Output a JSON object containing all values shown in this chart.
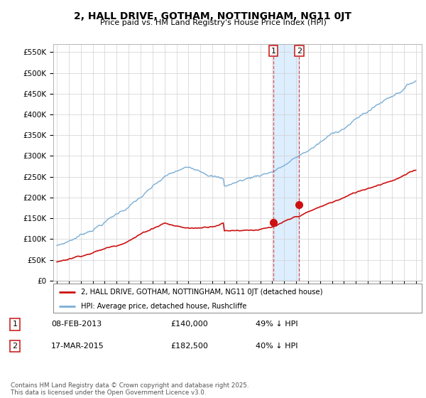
{
  "title": "2, HALL DRIVE, GOTHAM, NOTTINGHAM, NG11 0JT",
  "subtitle": "Price paid vs. HM Land Registry's House Price Index (HPI)",
  "ylabel_ticks": [
    "£0",
    "£50K",
    "£100K",
    "£150K",
    "£200K",
    "£250K",
    "£300K",
    "£350K",
    "£400K",
    "£450K",
    "£500K",
    "£550K"
  ],
  "ytick_values": [
    0,
    50000,
    100000,
    150000,
    200000,
    250000,
    300000,
    350000,
    400000,
    450000,
    500000,
    550000
  ],
  "ylim": [
    0,
    570000
  ],
  "xlim_start": 1994.7,
  "xlim_end": 2025.5,
  "hpi_color": "#7aaed6",
  "price_color": "#cc1111",
  "shade_color": "#ddeeff",
  "marker1_date": 2013.1,
  "marker2_date": 2015.25,
  "marker1_price": 140000,
  "marker2_price": 182500,
  "legend_house": "2, HALL DRIVE, GOTHAM, NOTTINGHAM, NG11 0JT (detached house)",
  "legend_hpi": "HPI: Average price, detached house, Rushcliffe",
  "table_row1": [
    "1",
    "08-FEB-2013",
    "£140,000",
    "49% ↓ HPI"
  ],
  "table_row2": [
    "2",
    "17-MAR-2015",
    "£182,500",
    "40% ↓ HPI"
  ],
  "footer": "Contains HM Land Registry data © Crown copyright and database right 2025.\nThis data is licensed under the Open Government Licence v3.0.",
  "background_color": "#ffffff",
  "grid_color": "#d0d0d0"
}
